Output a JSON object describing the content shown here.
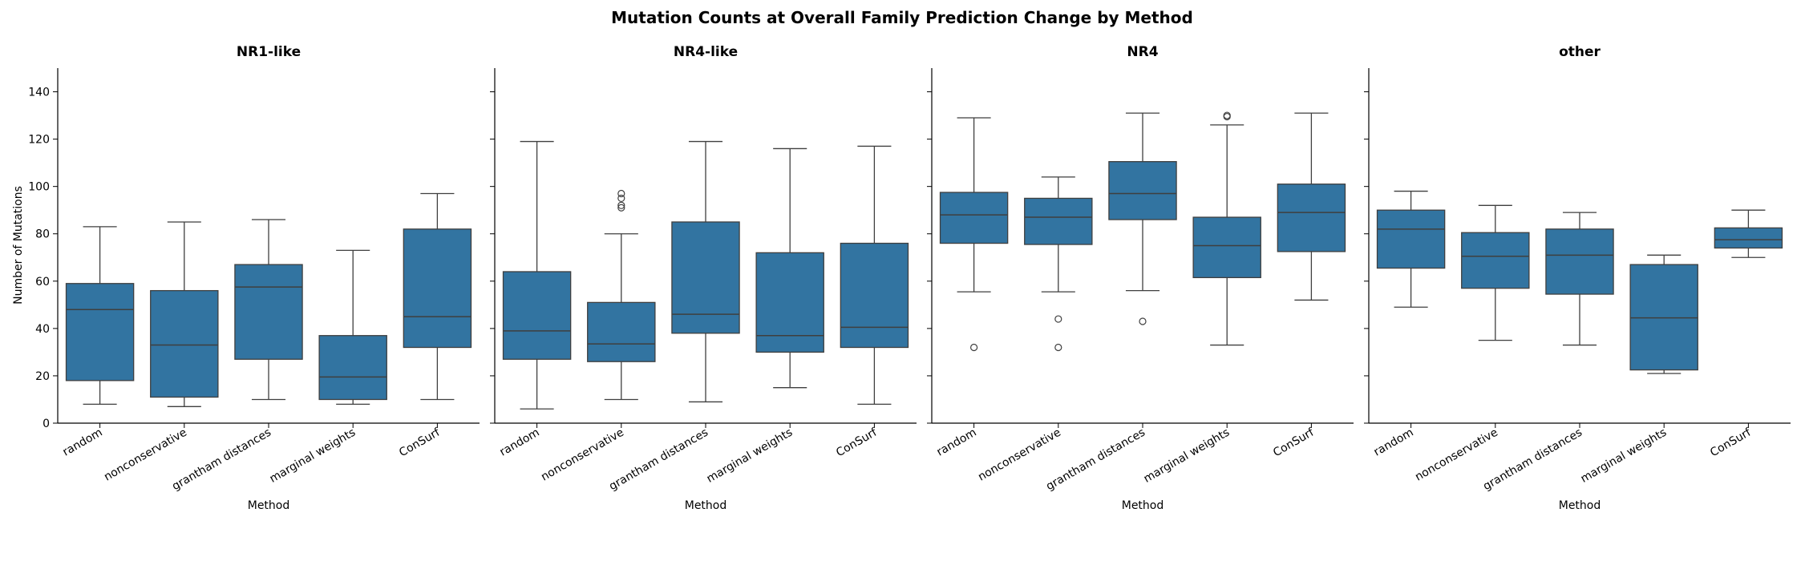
{
  "chart_data": {
    "type": "boxplot",
    "title": "Mutation Counts at Overall Family Prediction Change by Method",
    "ylabel": "Number of Mutations",
    "xlabel": "Method",
    "ylim": [
      0,
      150
    ],
    "yticks": [
      0,
      20,
      40,
      60,
      80,
      100,
      120,
      140
    ],
    "categories": [
      "random",
      "nonconservative",
      "grantham distances",
      "marginal weights",
      "ConSurf"
    ],
    "box_color": "#3274a1",
    "panels": [
      {
        "title": "NR1-like",
        "boxes": [
          {
            "whislo": 8,
            "q1": 18,
            "med": 48,
            "q3": 59,
            "whishi": 83,
            "fliers": []
          },
          {
            "whislo": 7,
            "q1": 11,
            "med": 33,
            "q3": 56,
            "whishi": 85,
            "fliers": []
          },
          {
            "whislo": 10,
            "q1": 27,
            "med": 57.5,
            "q3": 67,
            "whishi": 86,
            "fliers": []
          },
          {
            "whislo": 8,
            "q1": 10,
            "med": 19.5,
            "q3": 37,
            "whishi": 73,
            "fliers": []
          },
          {
            "whislo": 10,
            "q1": 32,
            "med": 45,
            "q3": 82,
            "whishi": 97,
            "fliers": []
          }
        ]
      },
      {
        "title": "NR4-like",
        "boxes": [
          {
            "whislo": 6,
            "q1": 27,
            "med": 39,
            "q3": 64,
            "whishi": 119,
            "fliers": []
          },
          {
            "whislo": 10,
            "q1": 26,
            "med": 33.5,
            "q3": 51,
            "whishi": 80,
            "fliers": [
              91,
              92,
              95,
              97
            ]
          },
          {
            "whislo": 9,
            "q1": 38,
            "med": 46,
            "q3": 85,
            "whishi": 119,
            "fliers": []
          },
          {
            "whislo": 15,
            "q1": 30,
            "med": 37,
            "q3": 72,
            "whishi": 116,
            "fliers": []
          },
          {
            "whislo": 8,
            "q1": 32,
            "med": 40.5,
            "q3": 76,
            "whishi": 117,
            "fliers": []
          }
        ]
      },
      {
        "title": "NR4",
        "boxes": [
          {
            "whislo": 55.5,
            "q1": 76,
            "med": 88,
            "q3": 97.5,
            "whishi": 129,
            "fliers": [
              32
            ]
          },
          {
            "whislo": 55.5,
            "q1": 75.5,
            "med": 87,
            "q3": 95,
            "whishi": 104,
            "fliers": [
              32,
              44
            ]
          },
          {
            "whislo": 56,
            "q1": 86,
            "med": 97,
            "q3": 110.5,
            "whishi": 131,
            "fliers": [
              43
            ]
          },
          {
            "whislo": 33,
            "q1": 61.5,
            "med": 75,
            "q3": 87,
            "whishi": 126,
            "fliers": [
              129.5,
              130
            ]
          },
          {
            "whislo": 52,
            "q1": 72.5,
            "med": 89,
            "q3": 101,
            "whishi": 131,
            "fliers": []
          }
        ]
      },
      {
        "title": "other",
        "boxes": [
          {
            "whislo": 49,
            "q1": 65.5,
            "med": 82,
            "q3": 90,
            "whishi": 98,
            "fliers": []
          },
          {
            "whislo": 35,
            "q1": 57,
            "med": 70.5,
            "q3": 80.5,
            "whishi": 92,
            "fliers": []
          },
          {
            "whislo": 33,
            "q1": 54.5,
            "med": 71,
            "q3": 82,
            "whishi": 89,
            "fliers": []
          },
          {
            "whislo": 21,
            "q1": 22.5,
            "med": 44.5,
            "q3": 67,
            "whishi": 71,
            "fliers": []
          },
          {
            "whislo": 70,
            "q1": 74,
            "med": 77.5,
            "q3": 82.5,
            "whishi": 90,
            "fliers": []
          }
        ]
      }
    ]
  }
}
